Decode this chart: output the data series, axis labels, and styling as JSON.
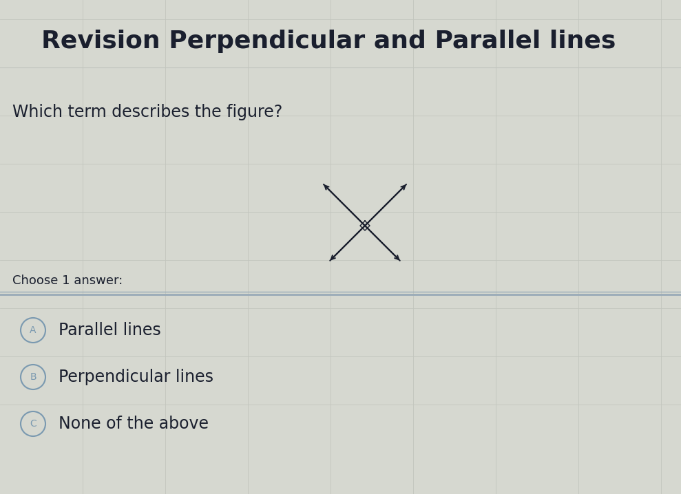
{
  "title": "Revision Perpendicular and Parallel lines",
  "question": "Which term describes the figure?",
  "choose_text": "Choose 1 answer:",
  "options": [
    {
      "label": "A",
      "text": "Parallel lines"
    },
    {
      "label": "B",
      "text": "Perpendicular lines"
    },
    {
      "label": "C",
      "text": "None of the above"
    }
  ],
  "bg_color": "#d6d8d0",
  "text_color": "#1a1f2e",
  "line_color": "#1a1f2e",
  "separator_color": "#9aabb8",
  "grid_color": "#c2c5be",
  "title_fontsize": 26,
  "question_fontsize": 17,
  "option_fontsize": 17,
  "choose_fontsize": 13,
  "circle_color": "#7a99b0"
}
